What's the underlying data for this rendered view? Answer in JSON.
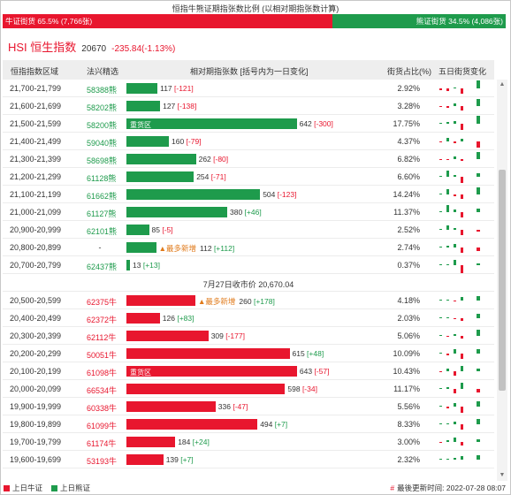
{
  "ratio": {
    "title": "恒指牛熊证期指张数比例 (以相对期指张数计算)",
    "bull_label": "牛证街货 65.5% (7,766张)",
    "bull_share": 0.655,
    "bear_label": "熊证街货 34.5% (4,086张)",
    "bear_share": 0.345
  },
  "index": {
    "name": "HSI 恒生指数",
    "value": "20670",
    "change": "-235.84(-1.13%)"
  },
  "columns": {
    "range": "恒指指数区域",
    "code": "法兴精选",
    "contracts": "相对期指张数 [括号内为一日变化]",
    "share": "街货占比(%)",
    "five_day": "五日街货变化"
  },
  "bear_rows": [
    {
      "range": "21,700-21,799",
      "code": "58388熊",
      "contracts": 117,
      "change": "-121",
      "label_main": "117 ",
      "label_change": "[-121]",
      "share": "2.92%",
      "spark": [
        -2,
        -3,
        1,
        -6,
        9
      ]
    },
    {
      "range": "21,600-21,699",
      "code": "58202熊",
      "contracts": 127,
      "change": "-138",
      "label_main": "127 ",
      "label_change": "[-138]",
      "share": "3.28%",
      "spark": [
        -1,
        -2,
        3,
        -5,
        8
      ]
    },
    {
      "range": "21,500-21,599",
      "code": "58200熊",
      "contracts": 642,
      "change": "-300",
      "label_main": "642 ",
      "label_change": "[-300]",
      "share": "17.75%",
      "zone": "重货区",
      "spark": [
        1,
        2,
        3,
        -7,
        9
      ]
    },
    {
      "range": "21,400-21,499",
      "code": "59040熊",
      "contracts": 160,
      "change": "-79",
      "label_main": "160 ",
      "label_change": "[-79]",
      "share": "4.37%",
      "spark": [
        -1,
        4,
        -2,
        3,
        -7
      ]
    },
    {
      "range": "21,300-21,399",
      "code": "58698熊",
      "contracts": 262,
      "change": "-80",
      "label_main": "262 ",
      "label_change": "[-80]",
      "share": "6.82%",
      "spark": [
        -1,
        -1,
        3,
        -2,
        8
      ]
    },
    {
      "range": "21,200-21,299",
      "code": "61128熊",
      "contracts": 254,
      "change": "-71",
      "label_main": "254 ",
      "label_change": "[-71]",
      "share": "6.60%",
      "spark": [
        1,
        7,
        2,
        -7,
        4
      ]
    },
    {
      "range": "21,100-21,199",
      "code": "61662熊",
      "contracts": 504,
      "change": "-123",
      "label_main": "504 ",
      "label_change": "[-123]",
      "share": "14.24%",
      "spark": [
        1,
        6,
        -2,
        -5,
        8
      ]
    },
    {
      "range": "21,000-21,099",
      "code": "61127熊",
      "contracts": 380,
      "change": "+46",
      "label_main": "380 ",
      "label_change": "[+46]",
      "share": "11.37%",
      "spark": [
        1,
        8,
        3,
        -6,
        4
      ]
    },
    {
      "range": "20,900-20,999",
      "code": "62101熊",
      "contracts": 85,
      "change": "-5",
      "label_main": "85 ",
      "label_change": "[-5]",
      "share": "2.52%",
      "spark": [
        1,
        5,
        2,
        -6,
        -2
      ]
    },
    {
      "range": "20,800-20,899",
      "code": "-",
      "contracts": 112,
      "change": "+112",
      "most_added": "▲最多新增",
      "label_main": "112 ",
      "label_change": "[+112]",
      "share": "2.74%",
      "spark": [
        1,
        2,
        4,
        -6,
        -4
      ]
    },
    {
      "range": "20,700-20,799",
      "code": "62437熊",
      "contracts": 13,
      "change": "+13",
      "label_main": "13 ",
      "label_change": "[+13]",
      "share": "0.37%",
      "spark": [
        1,
        1,
        6,
        -9,
        2
      ]
    }
  ],
  "close_note": "7月27日收市价 20,670.04",
  "bull_rows": [
    {
      "range": "20,500-20,599",
      "code": "62375牛",
      "contracts": 260,
      "change": "+178",
      "most_added": "▲最多新增",
      "label_main": "260 ",
      "label_change": "[+178]",
      "share": "4.18%",
      "spark": [
        1,
        1,
        -1,
        4,
        5
      ]
    },
    {
      "range": "20,400-20,499",
      "code": "62372牛",
      "contracts": 126,
      "change": "+83",
      "label_main": "126 ",
      "label_change": "[+83]",
      "share": "2.03%",
      "spark": [
        1,
        1,
        -1,
        -3,
        5
      ]
    },
    {
      "range": "20,300-20,399",
      "code": "62112牛",
      "contracts": 309,
      "change": "-177",
      "label_main": "309 ",
      "label_change": "[-177]",
      "share": "5.06%",
      "spark": [
        1,
        -1,
        2,
        -3,
        7
      ]
    },
    {
      "range": "20,200-20,299",
      "code": "50051牛",
      "contracts": 615,
      "change": "+48",
      "label_main": "615 ",
      "label_change": "[+48]",
      "share": "10.09%",
      "spark": [
        1,
        -2,
        5,
        -6,
        5
      ]
    },
    {
      "range": "20,100-20,199",
      "code": "61098牛",
      "contracts": 643,
      "change": "-57",
      "label_main": "643 ",
      "label_change": "[-57]",
      "share": "10.43%",
      "zone": "重货区",
      "spark": [
        -1,
        3,
        -5,
        6,
        3
      ]
    },
    {
      "range": "20,000-20,099",
      "code": "66534牛",
      "contracts": 598,
      "change": "-34",
      "label_main": "598 ",
      "label_change": "[-34]",
      "share": "11.17%",
      "spark": [
        1,
        2,
        -5,
        7,
        -4
      ]
    },
    {
      "range": "19,900-19,999",
      "code": "60338牛",
      "contracts": 336,
      "change": "-47",
      "label_main": "336 ",
      "label_change": "[-47]",
      "share": "5.56%",
      "spark": [
        1,
        -2,
        4,
        -7,
        6
      ]
    },
    {
      "range": "19,800-19,899",
      "code": "61099牛",
      "contracts": 494,
      "change": "+7",
      "label_main": "494 ",
      "label_change": "[+7]",
      "share": "8.33%",
      "spark": [
        1,
        1,
        3,
        -6,
        6
      ]
    },
    {
      "range": "19,700-19,799",
      "code": "61174牛",
      "contracts": 184,
      "change": "+24",
      "label_main": "184 ",
      "label_change": "[+24]",
      "share": "3.00%",
      "spark": [
        -1,
        2,
        5,
        -4,
        3
      ]
    },
    {
      "range": "19,600-19,699",
      "code": "53193牛",
      "contracts": 139,
      "change": "+7",
      "label_main": "139 ",
      "label_change": "[+7]",
      "share": "2.32%",
      "spark": [
        1,
        1,
        2,
        4,
        5
      ]
    }
  ],
  "legend": {
    "bull": "上日牛证",
    "bear": "上日熊证"
  },
  "updated": {
    "hash": "#",
    "text": "最後更新时间: 2022-07-28 08:07"
  },
  "colors": {
    "bull": "#e8162e",
    "bear": "#1e9b4c",
    "most_added": "#e07a1a"
  },
  "icons": {
    "scroll_up": "triangle-up-icon",
    "scroll_down": "triangle-down-icon"
  }
}
